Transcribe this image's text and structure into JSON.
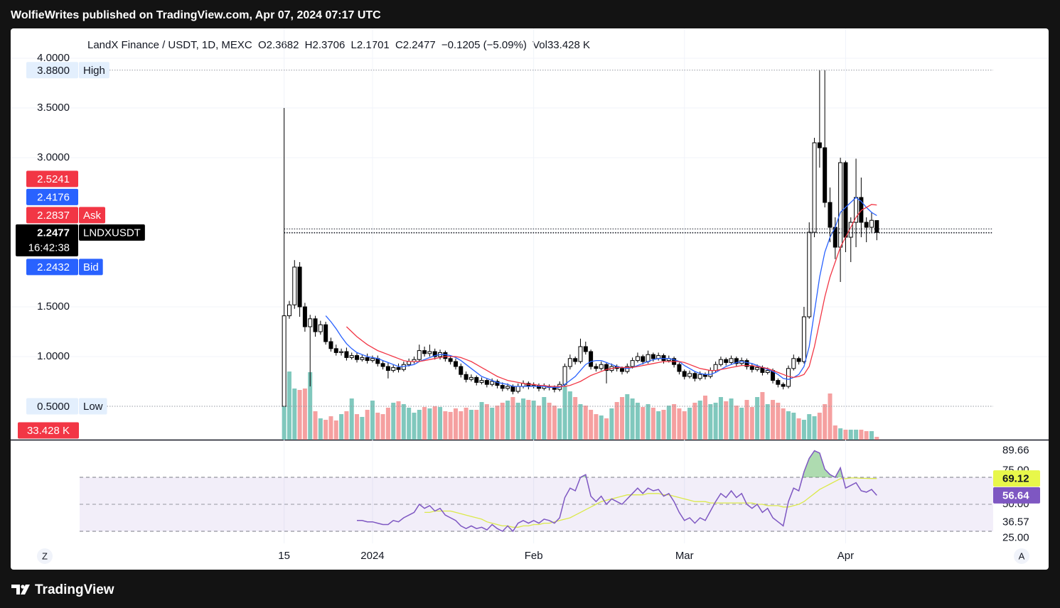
{
  "header": {
    "title": "WolfieWrites published on TradingView.com, Apr 07, 2024 07:17 UTC"
  },
  "footer": {
    "brand": "TradingView"
  },
  "chart_data": {
    "type": "candlestick",
    "legend": {
      "symbol": "LandX Finance / USDT, 1D, MEXC",
      "open": "O2.3682",
      "high": "H2.3706",
      "low": "L2.1701",
      "close": "C2.2477",
      "change": "−0.1205 (−5.09%)",
      "volume": "Vol33.428 K"
    },
    "xlim": [
      -52.6,
      147.05
    ],
    "xticks": [
      {
        "value": 0,
        "label": "15"
      },
      {
        "value": 17,
        "label": "2024"
      },
      {
        "value": 48,
        "label": "Feb"
      },
      {
        "value": 77,
        "label": "Mar"
      },
      {
        "value": 108,
        "label": "Apr"
      }
    ],
    "ylim": [
      0.1643,
      4.3
    ],
    "yticks": [
      {
        "value": 4,
        "label": "4.0000"
      },
      {
        "value": 3.5,
        "label": "3.5000"
      },
      {
        "value": 3,
        "label": "3.0000"
      },
      {
        "value": 1.5,
        "label": "1.5000"
      },
      {
        "value": 1,
        "label": "1.0000"
      }
    ],
    "grid": true,
    "up_color": "#ffffff",
    "down_color": "#000000",
    "volume_up_color": "#80c8bd",
    "volume_down_color": "#f5a0a0",
    "open": [
      0.5,
      1.41,
      1.52,
      1.9,
      1.5,
      1.3,
      1.38,
      1.25,
      1.32,
      1.15,
      1.08,
      1.04,
      1.05,
      0.99,
      1.01,
      0.97,
      0.99,
      0.96,
      0.98,
      0.93,
      0.9,
      0.86,
      0.89,
      0.87,
      0.92,
      0.95,
      0.97,
      1.06,
      1.03,
      1.05,
      1.0,
      1.04,
      0.98,
      0.95,
      0.9,
      0.82,
      0.77,
      0.79,
      0.74,
      0.76,
      0.72,
      0.75,
      0.71,
      0.68,
      0.7,
      0.65,
      0.7,
      0.73,
      0.7,
      0.71,
      0.68,
      0.7,
      0.69,
      0.67,
      0.72,
      0.9,
      0.98,
      0.95,
      1.1,
      1.05,
      0.9,
      0.88,
      0.92,
      0.86,
      0.9,
      0.88,
      0.85,
      0.9,
      0.96,
      1.0,
      0.95,
      1.02,
      0.98,
      1.01,
      0.96,
      0.98,
      0.92,
      0.85,
      0.8,
      0.83,
      0.78,
      0.82,
      0.8,
      0.86,
      0.92,
      0.97,
      0.94,
      0.98,
      0.93,
      0.96,
      0.9,
      0.87,
      0.89,
      0.84,
      0.86,
      0.76,
      0.72,
      0.7,
      0.88,
      0.98,
      0.95,
      1.4,
      2.25,
      3.15,
      3.1,
      2.55,
      2.3,
      2.1,
      2.95,
      2.2,
      2.35,
      2.6,
      2.35,
      2.3,
      2.3682
    ],
    "high": [
      3.5,
      1.56,
      1.97,
      1.95,
      1.54,
      1.42,
      1.41,
      1.36,
      1.35,
      1.19,
      1.12,
      1.08,
      1.09,
      1.04,
      1.04,
      1.02,
      1.03,
      1.01,
      1.01,
      0.96,
      0.94,
      0.92,
      0.93,
      0.95,
      0.98,
      1.0,
      1.12,
      1.1,
      1.12,
      1.08,
      1.07,
      1.06,
      1.01,
      0.98,
      0.93,
      0.85,
      0.82,
      0.81,
      0.79,
      0.78,
      0.78,
      0.77,
      0.74,
      0.73,
      0.72,
      0.73,
      0.76,
      0.75,
      0.74,
      0.73,
      0.73,
      0.72,
      0.71,
      0.75,
      0.93,
      1.02,
      1.0,
      1.18,
      1.15,
      1.07,
      0.93,
      0.95,
      0.94,
      0.93,
      0.92,
      0.9,
      0.93,
      0.99,
      1.04,
      1.02,
      1.06,
      1.04,
      1.04,
      1.03,
      1.01,
      1.0,
      0.94,
      0.87,
      0.86,
      0.85,
      0.85,
      0.84,
      0.89,
      0.95,
      1.0,
      0.99,
      1.01,
      1.0,
      0.99,
      0.98,
      0.93,
      0.92,
      0.91,
      0.89,
      0.88,
      0.78,
      0.74,
      0.91,
      1.02,
      1.0,
      1.5,
      2.35,
      3.2,
      3.88,
      3.88,
      2.7,
      2.4,
      3.0,
      2.97,
      2.4,
      2.99,
      2.8,
      2.4,
      2.45,
      2.3706
    ],
    "low": [
      0.5,
      1.38,
      1.48,
      1.4,
      1.25,
      0.7,
      1.2,
      1.22,
      1.12,
      1.05,
      1.01,
      1.01,
      0.96,
      0.97,
      0.94,
      0.95,
      0.93,
      0.94,
      0.9,
      0.87,
      0.78,
      0.84,
      0.84,
      0.85,
      0.9,
      0.93,
      0.95,
      1.0,
      1.0,
      0.97,
      0.97,
      0.95,
      0.92,
      0.87,
      0.79,
      0.74,
      0.75,
      0.71,
      0.72,
      0.69,
      0.7,
      0.68,
      0.65,
      0.66,
      0.62,
      0.63,
      0.68,
      0.67,
      0.68,
      0.65,
      0.66,
      0.66,
      0.64,
      0.65,
      0.7,
      0.87,
      0.92,
      0.93,
      1.02,
      0.87,
      0.85,
      0.86,
      0.73,
      0.84,
      0.85,
      0.82,
      0.83,
      0.88,
      0.94,
      0.92,
      0.93,
      0.95,
      0.96,
      0.93,
      0.94,
      0.89,
      0.82,
      0.77,
      0.78,
      0.75,
      0.76,
      0.77,
      0.78,
      0.84,
      0.9,
      0.91,
      0.92,
      0.9,
      0.91,
      0.87,
      0.84,
      0.85,
      0.81,
      0.82,
      0.73,
      0.69,
      0.67,
      0.68,
      0.86,
      0.92,
      0.93,
      1.38,
      2.2,
      2.9,
      2.5,
      2.15,
      1.98,
      1.75,
      2.05,
      1.95,
      2.1,
      2.2,
      2.15,
      2.25,
      2.1701
    ],
    "close": [
      1.41,
      1.52,
      1.9,
      1.5,
      1.3,
      1.38,
      1.25,
      1.32,
      1.15,
      1.08,
      1.04,
      1.05,
      0.99,
      1.01,
      0.97,
      0.99,
      0.96,
      0.98,
      0.93,
      0.9,
      0.86,
      0.89,
      0.87,
      0.92,
      0.95,
      0.97,
      1.06,
      1.03,
      1.05,
      1.0,
      1.04,
      0.98,
      0.95,
      0.9,
      0.82,
      0.77,
      0.79,
      0.74,
      0.76,
      0.72,
      0.75,
      0.71,
      0.68,
      0.7,
      0.65,
      0.7,
      0.73,
      0.7,
      0.71,
      0.68,
      0.7,
      0.69,
      0.67,
      0.72,
      0.9,
      0.98,
      0.95,
      1.1,
      1.05,
      0.9,
      0.88,
      0.92,
      0.86,
      0.9,
      0.88,
      0.85,
      0.9,
      0.96,
      1.0,
      0.95,
      1.02,
      0.98,
      1.01,
      0.96,
      0.98,
      0.92,
      0.85,
      0.8,
      0.83,
      0.78,
      0.82,
      0.8,
      0.86,
      0.92,
      0.97,
      0.94,
      0.98,
      0.93,
      0.96,
      0.9,
      0.87,
      0.89,
      0.84,
      0.86,
      0.76,
      0.72,
      0.7,
      0.88,
      0.98,
      0.95,
      1.4,
      2.25,
      3.15,
      3.1,
      2.55,
      2.3,
      2.1,
      2.95,
      2.2,
      2.35,
      2.6,
      2.35,
      2.3,
      2.37,
      2.2477
    ],
    "volume": [
      395,
      806,
      605,
      588,
      605,
      798,
      336,
      252,
      235,
      277,
      227,
      302,
      336,
      487,
      302,
      269,
      353,
      462,
      319,
      302,
      378,
      437,
      454,
      420,
      378,
      319,
      353,
      386,
      370,
      395,
      386,
      336,
      328,
      370,
      336,
      378,
      353,
      353,
      445,
      420,
      378,
      403,
      437,
      462,
      504,
      437,
      487,
      470,
      462,
      403,
      504,
      437,
      403,
      370,
      630,
      571,
      504,
      420,
      403,
      353,
      302,
      286,
      252,
      370,
      445,
      504,
      538,
      487,
      437,
      386,
      420,
      378,
      336,
      353,
      403,
      420,
      370,
      336,
      378,
      437,
      462,
      521,
      420,
      437,
      504,
      454,
      487,
      403,
      378,
      470,
      386,
      504,
      563,
      420,
      470,
      437,
      370,
      336,
      319,
      252,
      235,
      302,
      277,
      319,
      420,
      546,
      168,
      134,
      118,
      118,
      118,
      118,
      101,
      101,
      33.428
    ],
    "volume_label": "33.428 K",
    "volume_badge_color": "#f23645",
    "ma_lines": [
      {
        "color": "#2962ff",
        "values": [
          null,
          null,
          null,
          null,
          null,
          null,
          null,
          null,
          1.41,
          1.35,
          1.28,
          1.2,
          1.13,
          1.08,
          1.04,
          1.02,
          1.0,
          0.99,
          0.98,
          0.96,
          0.94,
          0.92,
          0.9,
          0.9,
          0.91,
          0.92,
          0.95,
          0.97,
          0.99,
          1.01,
          1.02,
          1.02,
          1.01,
          0.99,
          0.96,
          0.92,
          0.88,
          0.84,
          0.8,
          0.78,
          0.76,
          0.74,
          0.73,
          0.72,
          0.7,
          0.7,
          0.7,
          0.7,
          0.7,
          0.7,
          0.7,
          0.69,
          0.69,
          0.69,
          0.72,
          0.76,
          0.8,
          0.86,
          0.92,
          0.95,
          0.96,
          0.96,
          0.94,
          0.92,
          0.9,
          0.89,
          0.88,
          0.89,
          0.91,
          0.93,
          0.95,
          0.97,
          0.98,
          0.98,
          0.98,
          0.97,
          0.95,
          0.91,
          0.88,
          0.85,
          0.83,
          0.82,
          0.82,
          0.84,
          0.87,
          0.9,
          0.92,
          0.94,
          0.95,
          0.94,
          0.93,
          0.91,
          0.89,
          0.87,
          0.85,
          0.82,
          0.78,
          0.77,
          0.79,
          0.82,
          0.9,
          1.1,
          1.45,
          1.8,
          2.05,
          2.2,
          2.3,
          2.45,
          2.5,
          2.55,
          2.6,
          2.56,
          2.5,
          2.45,
          2.4176
        ]
      },
      {
        "color": "#f23645",
        "values": [
          null,
          null,
          null,
          null,
          null,
          null,
          null,
          null,
          null,
          null,
          null,
          null,
          1.3,
          1.25,
          1.2,
          1.16,
          1.12,
          1.09,
          1.06,
          1.04,
          1.02,
          1.0,
          0.98,
          0.96,
          0.95,
          0.95,
          0.95,
          0.96,
          0.97,
          0.98,
          0.99,
          1.0,
          1.0,
          1.0,
          0.99,
          0.97,
          0.95,
          0.92,
          0.89,
          0.86,
          0.83,
          0.8,
          0.78,
          0.76,
          0.75,
          0.74,
          0.73,
          0.72,
          0.72,
          0.71,
          0.71,
          0.7,
          0.7,
          0.7,
          0.7,
          0.71,
          0.73,
          0.75,
          0.78,
          0.81,
          0.83,
          0.85,
          0.87,
          0.88,
          0.89,
          0.89,
          0.89,
          0.89,
          0.9,
          0.91,
          0.92,
          0.93,
          0.94,
          0.95,
          0.95,
          0.95,
          0.95,
          0.94,
          0.92,
          0.9,
          0.88,
          0.87,
          0.86,
          0.86,
          0.87,
          0.88,
          0.89,
          0.9,
          0.91,
          0.91,
          0.91,
          0.9,
          0.89,
          0.88,
          0.86,
          0.84,
          0.82,
          0.8,
          0.79,
          0.8,
          0.82,
          0.9,
          1.1,
          1.35,
          1.6,
          1.8,
          1.95,
          2.1,
          2.2,
          2.3,
          2.4,
          2.47,
          2.5,
          2.53,
          2.5241
        ]
      }
    ],
    "price_badges": [
      {
        "value": 3.88,
        "label": "3.8800",
        "tag": "High",
        "color": "#e3effd",
        "text_color": "#131722",
        "line_color": "#9598a1"
      },
      {
        "value": 2.5241,
        "label": "2.5241",
        "color": "#f23645",
        "text_color": "#ffffff"
      },
      {
        "value": 2.4176,
        "label": "2.4176",
        "color": "#2962ff",
        "text_color": "#ffffff"
      },
      {
        "value": 2.2837,
        "label": "2.2837",
        "tag": "Ask",
        "color": "#f23645",
        "text_color": "#ffffff",
        "line_color": "#131722"
      },
      {
        "value": 2.2477,
        "label": "2.2477",
        "tag": "LNDXUSDT",
        "countdown": "16:42:38",
        "color": "#000000",
        "text_color": "#ffffff",
        "line_color": "#131722"
      },
      {
        "value": 2.2432,
        "label": "2.2432",
        "tag": "Bid",
        "color": "#2962ff",
        "text_color": "#ffffff",
        "line_color": "#131722"
      },
      {
        "value": 0.5,
        "label": "0.5000",
        "tag": "Low",
        "color": "#e3effd",
        "text_color": "#131722",
        "line_color": "#9598a1"
      }
    ],
    "rsi": {
      "color": "#7e57c2",
      "ma_color": "#dbe94a",
      "band_fill": "#7e57c2",
      "overbought_fill": "#4caf50",
      "y2lim": [
        21.05,
        96.3
      ],
      "y2ticks": [
        89.66,
        {
          "value": 75,
          "label": "75.00"
        },
        {
          "value": 50,
          "label": "50.00"
        },
        36.57,
        {
          "value": 25,
          "label": "25.00"
        }
      ],
      "band": [
        30,
        70
      ],
      "mid": 50,
      "values": [
        null,
        null,
        null,
        null,
        null,
        null,
        null,
        null,
        null,
        null,
        null,
        null,
        null,
        null,
        38,
        38,
        37,
        37,
        36,
        35,
        35,
        38,
        37,
        40,
        42,
        44,
        50,
        47,
        49,
        45,
        47,
        42,
        40,
        38,
        34,
        32,
        34,
        32,
        33,
        31,
        35,
        32,
        30,
        34,
        30,
        36,
        38,
        36,
        38,
        36,
        39,
        38,
        36,
        40,
        55,
        62,
        60,
        70,
        72,
        56,
        52,
        56,
        50,
        54,
        52,
        50,
        54,
        58,
        62,
        58,
        62,
        60,
        61,
        56,
        58,
        52,
        44,
        38,
        40,
        36,
        40,
        38,
        45,
        52,
        58,
        55,
        60,
        55,
        58,
        50,
        47,
        50,
        44,
        47,
        40,
        37,
        34,
        52,
        62,
        60,
        74,
        84,
        89.66,
        88,
        76,
        72,
        70,
        77,
        62,
        64,
        66,
        60,
        59,
        61,
        56.64
      ],
      "ma": [
        null,
        null,
        null,
        null,
        null,
        null,
        null,
        null,
        null,
        null,
        null,
        null,
        null,
        null,
        null,
        null,
        null,
        null,
        null,
        null,
        null,
        null,
        null,
        null,
        null,
        null,
        null,
        44,
        44,
        45,
        45,
        45,
        45,
        44,
        43,
        42,
        41,
        40,
        39,
        37,
        36,
        35,
        34,
        34,
        33,
        33,
        34,
        34,
        35,
        35,
        36,
        36,
        37,
        38,
        39,
        40,
        42,
        44,
        46,
        48,
        50,
        52,
        53,
        54,
        55,
        56,
        57,
        57,
        57,
        57,
        58,
        58,
        58,
        57,
        57,
        56,
        55,
        54,
        53,
        52,
        52,
        52,
        51,
        51,
        51,
        51,
        51,
        51,
        51,
        51,
        51,
        50,
        50,
        49,
        49,
        49,
        48,
        48,
        49,
        50,
        52,
        55,
        58,
        61,
        63,
        65,
        67,
        69,
        69,
        69.5,
        69.5,
        69.3,
        69.2,
        69.1,
        69.12
      ],
      "badges": [
        {
          "value": 69.12,
          "label": "69.12",
          "color": "#e8f74a",
          "text_color": "#131722"
        },
        {
          "value": 56.64,
          "label": "56.64",
          "color": "#7e57c2",
          "text_color": "#ffffff"
        }
      ]
    },
    "axis_buttons": [
      "Z",
      "A"
    ]
  }
}
